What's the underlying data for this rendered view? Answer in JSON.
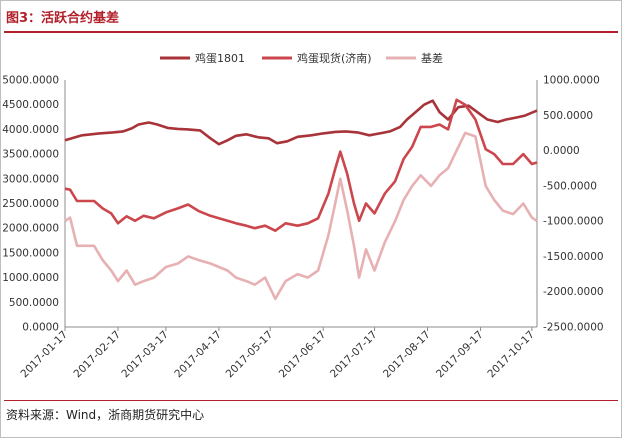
{
  "header": {
    "title": "图3：活跃合约基差"
  },
  "footer": {
    "source": "资料来源：Wind，浙商期货研究中心"
  },
  "colors": {
    "futures": "#a8343a",
    "spot": "#cc474d",
    "basis": "#e7b1b3",
    "accent": "#b2202a"
  },
  "chart_data": {
    "type": "line",
    "title": "",
    "grid": false,
    "legend_position": "top",
    "x_ticks": [
      "2017-01-17",
      "2017-02-17",
      "2017-03-17",
      "2017-04-17",
      "2017-05-17",
      "2017-06-17",
      "2017-07-17",
      "2017-08-17",
      "2017-09-17",
      "2017-10-17"
    ],
    "x_range": [
      "2017-01-17",
      "2017-10-20"
    ],
    "y_left": {
      "ticks": [
        "0.0000",
        "500.0000",
        "1000.0000",
        "1500.0000",
        "2000.0000",
        "2500.0000",
        "3000.0000",
        "3500.0000",
        "4000.0000",
        "4500.0000",
        "5000.0000"
      ],
      "lim": [
        0,
        5000
      ]
    },
    "y_right": {
      "ticks": [
        "-2500.0000",
        "-2000.0000",
        "-1500.0000",
        "-1000.0000",
        "-500.0000",
        "0.0000",
        "500.0000",
        "1000.0000"
      ],
      "lim": [
        -2500,
        1000
      ]
    },
    "series": [
      {
        "name": "鸡蛋1801",
        "axis": "left",
        "points": [
          [
            "2017-01-17",
            3780
          ],
          [
            "2017-01-22",
            3830
          ],
          [
            "2017-01-27",
            3880
          ],
          [
            "2017-02-06",
            3920
          ],
          [
            "2017-02-14",
            3940
          ],
          [
            "2017-02-20",
            3960
          ],
          [
            "2017-02-25",
            4020
          ],
          [
            "2017-03-01",
            4100
          ],
          [
            "2017-03-07",
            4140
          ],
          [
            "2017-03-12",
            4100
          ],
          [
            "2017-03-18",
            4030
          ],
          [
            "2017-03-24",
            4010
          ],
          [
            "2017-03-30",
            4000
          ],
          [
            "2017-04-06",
            3980
          ],
          [
            "2017-04-12",
            3820
          ],
          [
            "2017-04-17",
            3700
          ],
          [
            "2017-04-22",
            3780
          ],
          [
            "2017-04-27",
            3870
          ],
          [
            "2017-05-03",
            3900
          ],
          [
            "2017-05-10",
            3840
          ],
          [
            "2017-05-16",
            3820
          ],
          [
            "2017-05-21",
            3720
          ],
          [
            "2017-05-27",
            3760
          ],
          [
            "2017-06-02",
            3850
          ],
          [
            "2017-06-10",
            3880
          ],
          [
            "2017-06-17",
            3920
          ],
          [
            "2017-06-24",
            3950
          ],
          [
            "2017-06-30",
            3960
          ],
          [
            "2017-07-07",
            3940
          ],
          [
            "2017-07-14",
            3880
          ],
          [
            "2017-07-20",
            3920
          ],
          [
            "2017-07-26",
            3960
          ],
          [
            "2017-08-01",
            4050
          ],
          [
            "2017-08-05",
            4200
          ],
          [
            "2017-08-10",
            4350
          ],
          [
            "2017-08-15",
            4500
          ],
          [
            "2017-08-20",
            4580
          ],
          [
            "2017-08-24",
            4350
          ],
          [
            "2017-08-29",
            4200
          ],
          [
            "2017-09-04",
            4450
          ],
          [
            "2017-09-10",
            4480
          ],
          [
            "2017-09-17",
            4300
          ],
          [
            "2017-09-21",
            4200
          ],
          [
            "2017-09-27",
            4150
          ],
          [
            "2017-10-02",
            4200
          ],
          [
            "2017-10-08",
            4240
          ],
          [
            "2017-10-13",
            4280
          ],
          [
            "2017-10-20",
            4380
          ]
        ]
      },
      {
        "name": "鸡蛋现货(济南)",
        "axis": "left",
        "points": [
          [
            "2017-01-17",
            2800
          ],
          [
            "2017-01-20",
            2780
          ],
          [
            "2017-01-24",
            2550
          ],
          [
            "2017-02-03",
            2550
          ],
          [
            "2017-02-08",
            2400
          ],
          [
            "2017-02-13",
            2300
          ],
          [
            "2017-02-17",
            2100
          ],
          [
            "2017-02-22",
            2240
          ],
          [
            "2017-02-27",
            2150
          ],
          [
            "2017-03-04",
            2250
          ],
          [
            "2017-03-10",
            2200
          ],
          [
            "2017-03-17",
            2320
          ],
          [
            "2017-03-24",
            2400
          ],
          [
            "2017-03-30",
            2480
          ],
          [
            "2017-04-05",
            2350
          ],
          [
            "2017-04-12",
            2250
          ],
          [
            "2017-04-17",
            2200
          ],
          [
            "2017-04-22",
            2150
          ],
          [
            "2017-04-27",
            2100
          ],
          [
            "2017-05-03",
            2050
          ],
          [
            "2017-05-08",
            2000
          ],
          [
            "2017-05-14",
            2050
          ],
          [
            "2017-05-20",
            1950
          ],
          [
            "2017-05-26",
            2100
          ],
          [
            "2017-06-02",
            2050
          ],
          [
            "2017-06-08",
            2100
          ],
          [
            "2017-06-14",
            2200
          ],
          [
            "2017-06-20",
            2700
          ],
          [
            "2017-06-24",
            3200
          ],
          [
            "2017-06-27",
            3550
          ],
          [
            "2017-07-01",
            3100
          ],
          [
            "2017-07-05",
            2500
          ],
          [
            "2017-07-08",
            2150
          ],
          [
            "2017-07-12",
            2500
          ],
          [
            "2017-07-17",
            2300
          ],
          [
            "2017-07-23",
            2700
          ],
          [
            "2017-07-29",
            2950
          ],
          [
            "2017-08-03",
            3400
          ],
          [
            "2017-08-08",
            3650
          ],
          [
            "2017-08-13",
            4050
          ],
          [
            "2017-08-19",
            4050
          ],
          [
            "2017-08-24",
            4100
          ],
          [
            "2017-08-29",
            4000
          ],
          [
            "2017-09-03",
            4600
          ],
          [
            "2017-09-08",
            4500
          ],
          [
            "2017-09-14",
            4200
          ],
          [
            "2017-09-20",
            3600
          ],
          [
            "2017-09-25",
            3500
          ],
          [
            "2017-09-30",
            3300
          ],
          [
            "2017-10-06",
            3300
          ],
          [
            "2017-10-12",
            3500
          ],
          [
            "2017-10-17",
            3300
          ],
          [
            "2017-10-20",
            3330
          ]
        ]
      },
      {
        "name": "基差",
        "axis": "right",
        "points": [
          [
            "2017-01-17",
            -1000
          ],
          [
            "2017-01-20",
            -950
          ],
          [
            "2017-01-24",
            -1350
          ],
          [
            "2017-02-03",
            -1350
          ],
          [
            "2017-02-08",
            -1550
          ],
          [
            "2017-02-13",
            -1700
          ],
          [
            "2017-02-17",
            -1850
          ],
          [
            "2017-02-22",
            -1700
          ],
          [
            "2017-02-27",
            -1900
          ],
          [
            "2017-03-04",
            -1850
          ],
          [
            "2017-03-10",
            -1800
          ],
          [
            "2017-03-17",
            -1650
          ],
          [
            "2017-03-24",
            -1600
          ],
          [
            "2017-03-30",
            -1500
          ],
          [
            "2017-04-05",
            -1550
          ],
          [
            "2017-04-12",
            -1600
          ],
          [
            "2017-04-17",
            -1650
          ],
          [
            "2017-04-22",
            -1700
          ],
          [
            "2017-04-27",
            -1800
          ],
          [
            "2017-05-03",
            -1850
          ],
          [
            "2017-05-08",
            -1900
          ],
          [
            "2017-05-14",
            -1800
          ],
          [
            "2017-05-20",
            -2100
          ],
          [
            "2017-05-26",
            -1850
          ],
          [
            "2017-06-02",
            -1750
          ],
          [
            "2017-06-08",
            -1800
          ],
          [
            "2017-06-14",
            -1700
          ],
          [
            "2017-06-20",
            -1200
          ],
          [
            "2017-06-24",
            -750
          ],
          [
            "2017-06-27",
            -400
          ],
          [
            "2017-07-01",
            -850
          ],
          [
            "2017-07-05",
            -1350
          ],
          [
            "2017-07-08",
            -1800
          ],
          [
            "2017-07-12",
            -1400
          ],
          [
            "2017-07-17",
            -1700
          ],
          [
            "2017-07-23",
            -1300
          ],
          [
            "2017-07-29",
            -1000
          ],
          [
            "2017-08-03",
            -700
          ],
          [
            "2017-08-08",
            -500
          ],
          [
            "2017-08-13",
            -350
          ],
          [
            "2017-08-19",
            -500
          ],
          [
            "2017-08-24",
            -350
          ],
          [
            "2017-08-29",
            -250
          ],
          [
            "2017-09-03",
            0
          ],
          [
            "2017-09-08",
            250
          ],
          [
            "2017-09-14",
            200
          ],
          [
            "2017-09-20",
            -500
          ],
          [
            "2017-09-25",
            -700
          ],
          [
            "2017-09-30",
            -850
          ],
          [
            "2017-10-06",
            -900
          ],
          [
            "2017-10-12",
            -750
          ],
          [
            "2017-10-17",
            -950
          ],
          [
            "2017-10-20",
            -1000
          ]
        ]
      }
    ]
  }
}
